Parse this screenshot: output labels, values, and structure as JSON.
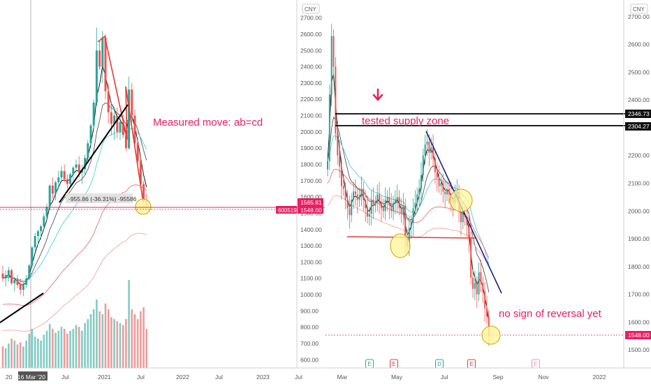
{
  "chart_data": [
    {
      "type": "candlestick",
      "period": "weekly",
      "currency": "CNY",
      "y_ticks": [
        600,
        700,
        800,
        900,
        1000,
        1100,
        1200,
        1300,
        1400,
        1500,
        1600,
        1700,
        1800,
        1900,
        2000,
        2100,
        2200,
        2300,
        2400,
        2500,
        2600,
        2700
      ],
      "ylim": [
        550,
        2810
      ],
      "x_ticks": [
        "20",
        "16 Mar '20",
        "Jul",
        "2021",
        "Jul",
        "2022",
        "Jul",
        "2023",
        "Jul"
      ],
      "price_labels": {
        "upper": "1565.81",
        "lower": "1548.00",
        "symbol": "600519"
      },
      "measure_label": "-955.86 (-36.31%) -95586",
      "annotation": "Measured move: ab=cd",
      "colors": {
        "up": "#26a69a",
        "down": "#ef5350",
        "pattern": "#e91e63",
        "trend": "#000000"
      },
      "ohlc": [
        [
          1130,
          1180,
          1080,
          1100
        ],
        [
          1100,
          1150,
          1050,
          1120
        ],
        [
          1120,
          1170,
          1080,
          1150
        ],
        [
          1150,
          1160,
          1060,
          1070
        ],
        [
          1070,
          1110,
          1020,
          1090
        ],
        [
          1090,
          1120,
          1040,
          1060
        ],
        [
          1060,
          1100,
          1000,
          1030
        ],
        [
          1030,
          1080,
          990,
          1060
        ],
        [
          1060,
          1120,
          1040,
          1100
        ],
        [
          1100,
          1190,
          1090,
          1180
        ],
        [
          1180,
          1300,
          1170,
          1290
        ],
        [
          1290,
          1380,
          1270,
          1360
        ],
        [
          1360,
          1400,
          1300,
          1390
        ],
        [
          1390,
          1430,
          1340,
          1420
        ],
        [
          1420,
          1500,
          1400,
          1480
        ],
        [
          1480,
          1560,
          1460,
          1540
        ],
        [
          1540,
          1680,
          1520,
          1670
        ],
        [
          1670,
          1720,
          1590,
          1620
        ],
        [
          1620,
          1700,
          1580,
          1690
        ],
        [
          1690,
          1760,
          1650,
          1720
        ],
        [
          1720,
          1790,
          1690,
          1760
        ],
        [
          1760,
          1800,
          1690,
          1710
        ],
        [
          1710,
          1740,
          1650,
          1680
        ],
        [
          1680,
          1750,
          1660,
          1740
        ],
        [
          1740,
          1790,
          1700,
          1780
        ],
        [
          1780,
          1830,
          1750,
          1800
        ],
        [
          1800,
          1850,
          1720,
          1750
        ],
        [
          1750,
          1800,
          1680,
          1770
        ],
        [
          1770,
          1860,
          1740,
          1840
        ],
        [
          1840,
          1950,
          1820,
          1930
        ],
        [
          1930,
          2050,
          1900,
          2040
        ],
        [
          2040,
          2200,
          2020,
          2180
        ],
        [
          2180,
          2640,
          2160,
          2500
        ],
        [
          2500,
          2560,
          2380,
          2400
        ],
        [
          2400,
          2620,
          2300,
          2580
        ],
        [
          2580,
          2600,
          2200,
          2250
        ],
        [
          2250,
          2300,
          2050,
          2120
        ],
        [
          2120,
          2180,
          1980,
          2050
        ],
        [
          2050,
          2150,
          1950,
          2100
        ],
        [
          2100,
          2150,
          1960,
          2000
        ],
        [
          2000,
          2100,
          1950,
          2060
        ],
        [
          2060,
          2110,
          1960,
          1980
        ],
        [
          1980,
          2050,
          1880,
          1900
        ],
        [
          1900,
          2340,
          1890,
          2260
        ],
        [
          2260,
          2300,
          2060,
          2100
        ],
        [
          2100,
          2140,
          1900,
          1930
        ],
        [
          1930,
          1960,
          1800,
          1820
        ],
        [
          1820,
          1850,
          1660,
          1680
        ],
        [
          1680,
          1700,
          1560,
          1580
        ],
        [
          1580,
          1620,
          1540,
          1548
        ]
      ],
      "volume_pct": [
        22,
        20,
        25,
        30,
        28,
        24,
        26,
        22,
        28,
        35,
        40,
        32,
        30,
        28,
        34,
        38,
        45,
        40,
        36,
        38,
        42,
        40,
        35,
        38,
        40,
        44,
        42,
        38,
        46,
        50,
        55,
        60,
        70,
        58,
        55,
        66,
        60,
        52,
        50,
        48,
        46,
        44,
        50,
        90,
        60,
        55,
        50,
        58,
        62,
        40
      ]
    },
    {
      "type": "candlestick",
      "period": "daily",
      "currency": "CNY",
      "y_ticks": [
        1500,
        1600,
        1700,
        1800,
        1900,
        2000,
        2100,
        2200,
        2300,
        2400,
        2500,
        2600,
        2700
      ],
      "ylim": [
        1435,
        2760
      ],
      "x_ticks": [
        "Mar",
        "May",
        "Jul",
        "Sep",
        "Nov",
        "2022"
      ],
      "price_labels": {
        "zone_high": "2346.73",
        "zone_low": "2304.27",
        "last": "1548.00"
      },
      "annotations": {
        "supply": "tested supply zone",
        "reversal": "no sign of reversal yet"
      },
      "levels": {
        "zone_high": 2346.73,
        "zone_low": 2304.27,
        "neckline": 1890,
        "last": 1548
      },
      "event_markers": [
        "E",
        "E",
        "D",
        "E",
        "E"
      ],
      "colors": {
        "up": "#26a69a",
        "down": "#ef5350",
        "pattern": "#e91e63",
        "trend": "#1a237e"
      },
      "closes": [
        2180,
        2420,
        2630,
        2520,
        2280,
        2200,
        2160,
        2090,
        2080,
        2040,
        2010,
        1985,
        2040,
        2070,
        2060,
        2040,
        2050,
        2080,
        2040,
        2010,
        1980,
        1990,
        2040,
        2020,
        2030,
        2060,
        2030,
        2010,
        2000,
        2040,
        2050,
        2020,
        2000,
        2030,
        2040,
        2050,
        2010,
        1990,
        2020,
        1900,
        1870,
        1940,
        1960,
        2010,
        2030,
        2060,
        2080,
        2130,
        2200,
        2240,
        2250,
        2210,
        2230,
        2190,
        2140,
        2120,
        2090,
        2100,
        2070,
        2060,
        2080,
        2060,
        2040,
        2030,
        2060,
        2070,
        2000,
        1960,
        1990,
        1980,
        1950,
        1900,
        1760,
        1720,
        1740,
        1700,
        1780,
        1740,
        1710,
        1650,
        1620,
        1548
      ]
    }
  ]
}
